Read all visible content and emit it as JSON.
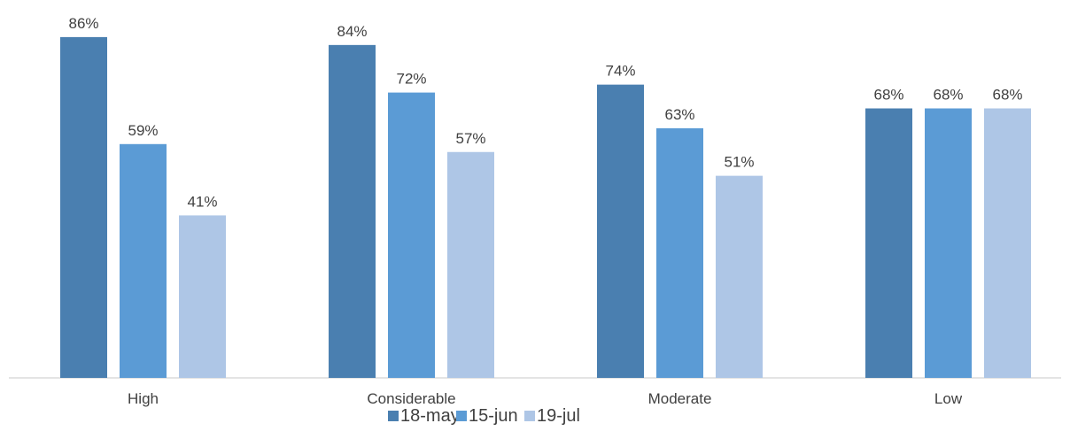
{
  "chart_data": {
    "type": "bar",
    "title": "",
    "xlabel": "",
    "ylabel": "",
    "ylim": [
      0,
      90
    ],
    "grid": false,
    "legend_position": "bottom",
    "categories": [
      "High",
      "Considerable",
      "Moderate",
      "Low"
    ],
    "series": [
      {
        "name": "18-may",
        "values": [
          86,
          84,
          74,
          68
        ],
        "color": "#4a7fb0"
      },
      {
        "name": "15-jun",
        "values": [
          59,
          72,
          63,
          68
        ],
        "color": "#5b9bd5"
      },
      {
        "name": "19-jul",
        "values": [
          41,
          57,
          51,
          68
        ],
        "color": "#aec6e6"
      }
    ],
    "value_suffix": "%"
  }
}
